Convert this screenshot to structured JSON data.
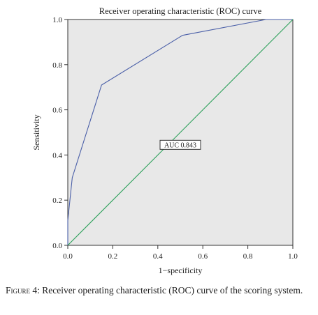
{
  "chart_data": {
    "type": "line",
    "title": "Receiver operating characteristic (ROC) curve",
    "xlabel": "1−specificity",
    "ylabel": "Sensitivity",
    "xlim": [
      0,
      1
    ],
    "ylim": [
      0,
      1
    ],
    "xticks": [
      "0.0",
      "0.2",
      "0.4",
      "0.6",
      "0.8",
      "1.0"
    ],
    "yticks": [
      "0.0",
      "0.2",
      "0.4",
      "0.6",
      "0.8",
      "1.0"
    ],
    "grid": false,
    "series": [
      {
        "color": "#4a5fa8",
        "x": [
          0.0,
          0.0,
          0.02,
          0.15,
          0.51,
          0.88,
          1.0
        ],
        "y": [
          0.0,
          0.11,
          0.3,
          0.71,
          0.93,
          1.0,
          1.0
        ]
      },
      {
        "color": "#2ca05a",
        "x": [
          0.0,
          1.0
        ],
        "y": [
          0.0,
          1.0
        ]
      }
    ],
    "annotations": [
      {
        "text": "AUC 0.843",
        "x": 0.5,
        "y": 0.445
      }
    ],
    "plot_background": "#e8e8e8"
  },
  "caption": {
    "label": "Figure 4:",
    "text": " Receiver operating characteristic (ROC) curve of the scoring system."
  }
}
